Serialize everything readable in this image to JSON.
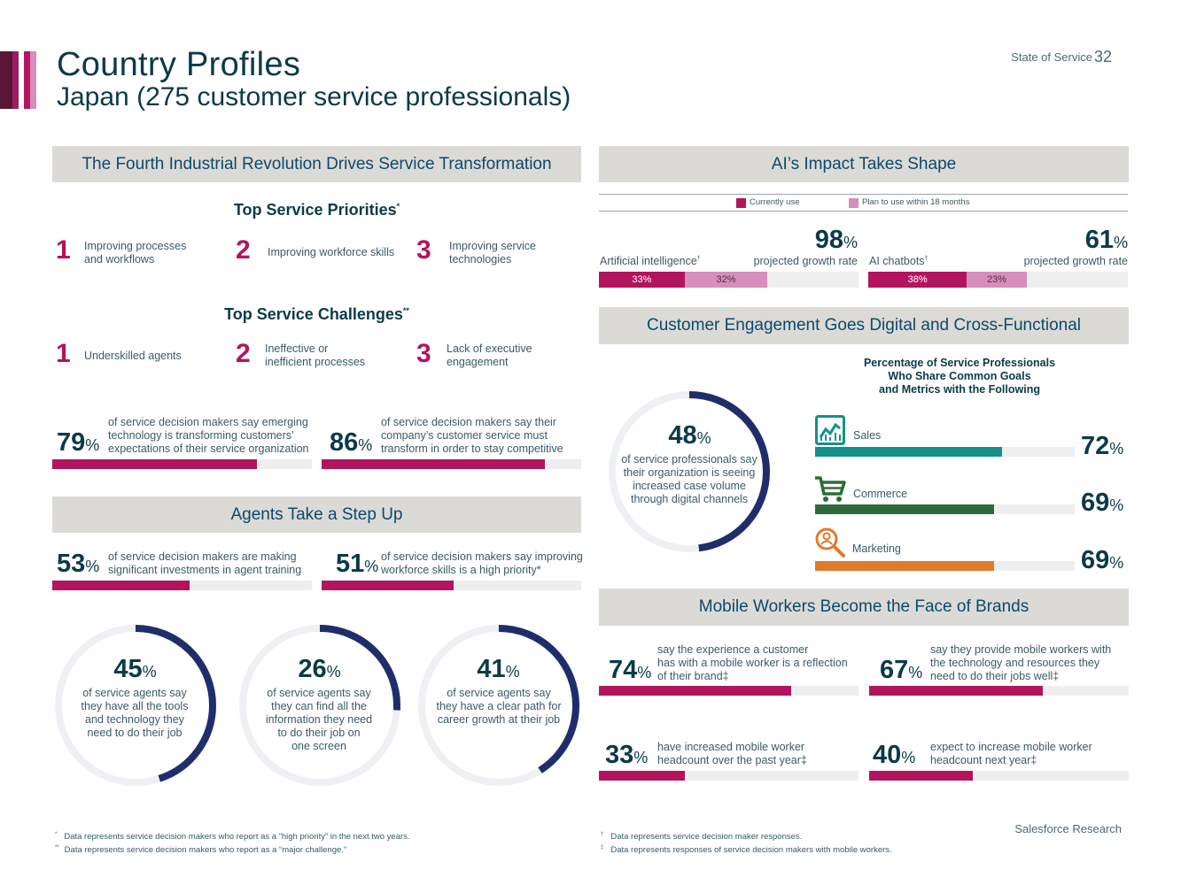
{
  "header": {
    "title": "Country Profiles",
    "subtitle": "Japan (275 customer service professionals)",
    "report_name": "State of Service",
    "page_number": "32"
  },
  "colors": {
    "magenta": "#b3145e",
    "navy": "#0b3a4a",
    "pink": "#d58fba",
    "teal": "#14918a",
    "green": "#2e6b3a",
    "orange": "#e07b2a",
    "ring_navy": "#1f2e6b"
  },
  "sections": {
    "fourth_ir": "The Fourth Industrial Revolution Drives Service Transformation",
    "agents": "Agents Take a Step Up",
    "ai_impact": "AI’s Impact Takes Shape",
    "engagement": "Customer Engagement Goes Digital and Cross-Functional",
    "mobile": "Mobile Workers Become the Face of Brands"
  },
  "priorities": {
    "heading": "Top Service Priorities",
    "marker": "*",
    "items": [
      {
        "rank": "1",
        "label_l1": "Improving processes",
        "label_l2": "and workflows"
      },
      {
        "rank": "2",
        "label_l1": "Improving workforce skills",
        "label_l2": ""
      },
      {
        "rank": "3",
        "label_l1": "Improving service",
        "label_l2": "technologies"
      }
    ]
  },
  "challenges": {
    "heading": "Top Service Challenges",
    "marker": "**",
    "items": [
      {
        "rank": "1",
        "label_l1": "Underskilled agents",
        "label_l2": ""
      },
      {
        "rank": "2",
        "label_l1": "Ineffective or",
        "label_l2": "inefficient processes"
      },
      {
        "rank": "3",
        "label_l1": "Lack of executive",
        "label_l2": "engagement"
      }
    ]
  },
  "transform_stats": [
    {
      "value": "79",
      "pct": 79,
      "l1": "of service decision makers say emerging",
      "l2": "technology is transforming customers’",
      "l3": "expectations of their service organization"
    },
    {
      "value": "86",
      "pct": 86,
      "l1": "of service decision makers say their",
      "l2": "company’s customer service must",
      "l3": "transform in order to stay competitive"
    }
  ],
  "agent_stats": [
    {
      "value": "53",
      "pct": 53,
      "l1": "of service decision makers are making",
      "l2": "significant investments in agent training"
    },
    {
      "value": "51",
      "pct": 51,
      "l1": "of service decision makers say improving",
      "l2": "workforce skills is a high priority*"
    }
  ],
  "agent_donuts": [
    {
      "value": "45",
      "pct": 45,
      "lines": [
        "of service agents say",
        "they have all the tools",
        "and technology they",
        "need to do their job"
      ]
    },
    {
      "value": "26",
      "pct": 26,
      "lines": [
        "of service agents say",
        "they can find all the",
        "information they need",
        "to do their job on",
        "one screen"
      ]
    },
    {
      "value": "41",
      "pct": 41,
      "lines": [
        "of service agents say",
        "they have a clear path for",
        "career growth at their job"
      ]
    }
  ],
  "ai": {
    "legend_current": "Currently use",
    "legend_plan": "Plan to use within 18 months",
    "items": [
      {
        "label": "Artificial intelligence",
        "marker": "†",
        "growth": "98",
        "growth_label": "projected growth rate",
        "current": 33,
        "current_label": "33%",
        "plan": 32,
        "plan_label": "32%"
      },
      {
        "label": "AI chatbots",
        "marker": "†",
        "growth": "61",
        "growth_label": "projected growth rate",
        "current": 38,
        "current_label": "38%",
        "plan": 23,
        "plan_label": "23%"
      }
    ]
  },
  "engagement": {
    "donut_value": "48",
    "donut_pct": 48,
    "donut_lines": [
      "of service professionals say",
      "their organization is seeing",
      "increased case volume",
      "through digital channels"
    ],
    "title_lines": [
      "Percentage of Service Professionals",
      "Who Share Common Goals",
      "and Metrics with the Following"
    ],
    "items": [
      {
        "label": "Sales",
        "value": "72",
        "pct": 72,
        "icon": "sales-chart-icon"
      },
      {
        "label": "Commerce",
        "value": "69",
        "pct": 69,
        "icon": "shopping-cart-icon"
      },
      {
        "label": "Marketing",
        "value": "69",
        "pct": 69,
        "icon": "magnifier-icon"
      }
    ]
  },
  "mobile_stats": [
    {
      "value": "74",
      "pct": 74,
      "l1": "say the experience a customer",
      "l2": "has with a mobile worker is a reflection",
      "l3": "of their brand‡"
    },
    {
      "value": "67",
      "pct": 67,
      "l1": "say they provide mobile workers with",
      "l2": "the technology and resources they",
      "l3": "need to do their jobs well‡"
    },
    {
      "value": "33",
      "pct": 33,
      "l1": "have increased mobile worker",
      "l2": "headcount over the past year‡",
      "l3": ""
    },
    {
      "value": "40",
      "pct": 40,
      "l1": "expect to increase mobile worker",
      "l2": "headcount next year‡",
      "l3": ""
    }
  ],
  "pct_sign": "%",
  "footnotes": {
    "left": [
      {
        "mark": "*",
        "text": "Data represents service decision makers who report as a “high priority” in the next two years."
      },
      {
        "mark": "**",
        "text": "Data represents service decision makers who report as a “major challenge.”"
      }
    ],
    "right": [
      {
        "mark": "†",
        "text": "Data represents service decision maker responses."
      },
      {
        "mark": "‡",
        "text": "Data represents responses of service decision makers with mobile workers."
      }
    ]
  },
  "brand": "Salesforce Research"
}
